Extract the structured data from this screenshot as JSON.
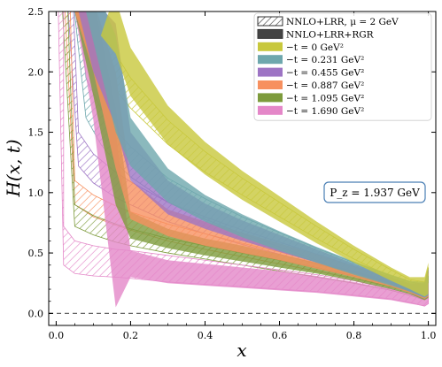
{
  "chart_data": {
    "type": "area",
    "xlabel": "x",
    "ylabel": "H(x,t)",
    "xlim": [
      -0.02,
      1.02
    ],
    "ylim": [
      -0.1,
      2.5
    ],
    "xticks": [
      "0.0",
      "0.2",
      "0.4",
      "0.6",
      "0.8",
      "1.0"
    ],
    "yticks": [
      "0.0",
      "0.5",
      "1.0",
      "1.5",
      "2.0",
      "2.5"
    ],
    "zero_line": true,
    "annotation": "P_z = 1.937 GeV",
    "legend_position": "top-right",
    "legend_style_entries": [
      {
        "label": "NNLO+LRR, μ = 2 GeV",
        "style": "hatched"
      },
      {
        "label": "NNLO+LRR+RGR",
        "style": "filled"
      }
    ],
    "series": [
      {
        "name": "−t = 0 GeV²",
        "color": "#c8c83c",
        "x0": 0.07,
        "x": [
          0.12,
          0.16,
          0.2,
          0.3,
          0.4,
          0.5,
          0.6,
          0.7,
          0.8,
          0.9,
          0.95,
          0.99
        ],
        "hatched_lower": [
          2.05,
          1.85,
          1.7,
          1.4,
          1.17,
          0.98,
          0.8,
          0.62,
          0.45,
          0.3,
          0.22,
          0.17
        ],
        "hatched_upper": [
          2.35,
          2.15,
          1.95,
          1.6,
          1.34,
          1.12,
          0.92,
          0.72,
          0.53,
          0.36,
          0.28,
          0.26
        ],
        "rgr_lower": [
          2.3,
          2.15,
          1.8,
          1.4,
          1.15,
          0.94,
          0.76,
          0.58,
          0.42,
          0.27,
          0.2,
          0.14
        ],
        "rgr_upper": [
          2.6,
          2.6,
          2.2,
          1.72,
          1.42,
          1.18,
          0.97,
          0.76,
          0.56,
          0.38,
          0.3,
          0.3
        ]
      },
      {
        "name": "−t = 0.231 GeV²",
        "color": "#6ea7ad",
        "x0": 0.045,
        "x": [
          0.08,
          0.12,
          0.16,
          0.2,
          0.3,
          0.4,
          0.5,
          0.6,
          0.7,
          0.8,
          0.9,
          0.95,
          0.99
        ],
        "hatched_lower": [
          1.62,
          1.4,
          1.25,
          1.13,
          0.92,
          0.78,
          0.66,
          0.55,
          0.44,
          0.34,
          0.25,
          0.2,
          0.15
        ],
        "hatched_upper": [
          1.95,
          1.7,
          1.52,
          1.38,
          1.12,
          0.95,
          0.8,
          0.67,
          0.54,
          0.42,
          0.31,
          0.26,
          0.24
        ],
        "rgr_lower": [
          2.5,
          2.0,
          1.5,
          1.22,
          0.92,
          0.76,
          0.63,
          0.52,
          0.42,
          0.32,
          0.23,
          0.18,
          0.13
        ],
        "rgr_upper": [
          2.6,
          2.6,
          2.3,
          1.62,
          1.2,
          0.98,
          0.82,
          0.68,
          0.55,
          0.43,
          0.32,
          0.27,
          0.26
        ]
      },
      {
        "name": "−t = 0.455 GeV²",
        "color": "#9d74c4",
        "x0": 0.03,
        "x": [
          0.06,
          0.1,
          0.16,
          0.2,
          0.3,
          0.4,
          0.5,
          0.6,
          0.7,
          0.8,
          0.9,
          0.95,
          0.99
        ],
        "hatched_lower": [
          1.22,
          1.08,
          0.96,
          0.9,
          0.76,
          0.66,
          0.57,
          0.49,
          0.41,
          0.33,
          0.24,
          0.19,
          0.14
        ],
        "hatched_upper": [
          1.5,
          1.32,
          1.17,
          1.09,
          0.92,
          0.8,
          0.69,
          0.59,
          0.49,
          0.39,
          0.29,
          0.24,
          0.23
        ],
        "rgr_lower": [
          2.5,
          2.0,
          1.55,
          1.1,
          0.82,
          0.7,
          0.6,
          0.51,
          0.42,
          0.33,
          0.24,
          0.18,
          0.13
        ],
        "rgr_upper": [
          2.6,
          2.6,
          2.4,
          1.5,
          1.1,
          0.91,
          0.77,
          0.65,
          0.53,
          0.41,
          0.3,
          0.25,
          0.25
        ]
      },
      {
        "name": "−t = 0.887 GeV²",
        "color": "#f7905f",
        "x0": 0.022,
        "x": [
          0.05,
          0.1,
          0.16,
          0.2,
          0.3,
          0.4,
          0.5,
          0.6,
          0.7,
          0.8,
          0.9,
          0.95,
          0.99
        ],
        "hatched_lower": [
          0.9,
          0.8,
          0.73,
          0.69,
          0.6,
          0.53,
          0.47,
          0.41,
          0.35,
          0.29,
          0.22,
          0.18,
          0.13
        ],
        "hatched_upper": [
          1.1,
          0.98,
          0.89,
          0.84,
          0.74,
          0.66,
          0.58,
          0.51,
          0.43,
          0.35,
          0.27,
          0.22,
          0.21
        ],
        "rgr_lower": [
          2.5,
          2.0,
          1.2,
          0.78,
          0.64,
          0.56,
          0.5,
          0.44,
          0.37,
          0.3,
          0.22,
          0.17,
          0.12
        ],
        "rgr_upper": [
          2.6,
          2.6,
          2.0,
          1.1,
          0.86,
          0.76,
          0.67,
          0.58,
          0.49,
          0.39,
          0.29,
          0.24,
          0.25
        ]
      },
      {
        "name": "−t = 1.095 GeV²",
        "color": "#7d9b3c",
        "x0": 0.015,
        "x": [
          0.05,
          0.1,
          0.16,
          0.2,
          0.3,
          0.4,
          0.5,
          0.6,
          0.7,
          0.8,
          0.9,
          0.95,
          0.99
        ],
        "hatched_lower": [
          0.72,
          0.65,
          0.59,
          0.56,
          0.5,
          0.45,
          0.4,
          0.35,
          0.3,
          0.25,
          0.19,
          0.15,
          0.11
        ],
        "hatched_upper": [
          0.9,
          0.81,
          0.74,
          0.7,
          0.62,
          0.56,
          0.5,
          0.44,
          0.38,
          0.31,
          0.24,
          0.2,
          0.19
        ],
        "rgr_lower": [
          2.5,
          1.8,
          0.9,
          0.62,
          0.54,
          0.48,
          0.43,
          0.38,
          0.33,
          0.27,
          0.2,
          0.16,
          0.11
        ],
        "rgr_upper": [
          2.6,
          2.6,
          1.7,
          0.84,
          0.7,
          0.62,
          0.56,
          0.49,
          0.42,
          0.35,
          0.26,
          0.22,
          0.23
        ]
      },
      {
        "name": "−t = 1.690 GeV²",
        "color": "#e487c8",
        "x0": 0.005,
        "x": [
          0.02,
          0.05,
          0.1,
          0.16,
          0.2,
          0.3,
          0.4,
          0.5,
          0.6,
          0.7,
          0.8,
          0.9,
          0.95,
          0.99
        ],
        "hatched_lower": [
          0.4,
          0.33,
          0.31,
          0.3,
          0.29,
          0.26,
          0.24,
          0.22,
          0.2,
          0.18,
          0.15,
          0.12,
          0.09,
          0.06
        ],
        "hatched_upper": [
          0.72,
          0.6,
          0.56,
          0.53,
          0.52,
          0.48,
          0.44,
          0.4,
          0.36,
          0.32,
          0.27,
          0.2,
          0.16,
          0.13
        ],
        "rgr_lower": [
          2.5,
          2.5,
          1.6,
          0.05,
          0.3,
          0.25,
          0.23,
          0.21,
          0.19,
          0.17,
          0.14,
          0.11,
          0.08,
          0.06
        ],
        "rgr_upper": [
          2.6,
          2.6,
          2.5,
          1.5,
          0.52,
          0.44,
          0.41,
          0.38,
          0.35,
          0.31,
          0.26,
          0.2,
          0.16,
          0.16
        ]
      }
    ]
  }
}
